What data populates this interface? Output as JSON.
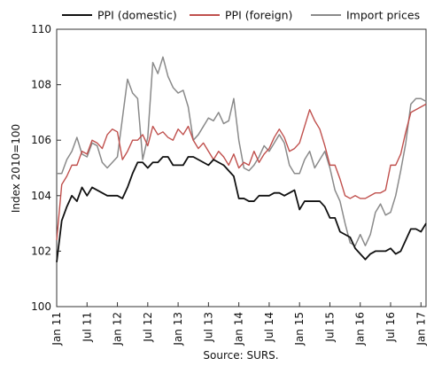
{
  "chart_data": {
    "type": "line",
    "ylabel": "Index 2010=100",
    "source": "Source: SURS.",
    "ylim": [
      100,
      110
    ],
    "y_ticks": [
      100,
      102,
      104,
      106,
      108,
      110
    ],
    "y_tick_labels": [
      "100",
      "102",
      "104",
      "106",
      "108",
      "110"
    ],
    "x_start": "Jan 2011",
    "x_ticks": [
      "Jan 11",
      "Jul 11",
      "Jan 12",
      "Jul 12",
      "Jan 13",
      "Jul 13",
      "Jan 14",
      "Jul 14",
      "Jan 15",
      "Jul 15",
      "Jan 16",
      "Jul 16",
      "Jan 17"
    ],
    "legend_position": "top",
    "grid": false,
    "series": [
      {
        "name": "PPI (domestic)",
        "color": "#111111",
        "values": [
          101.6,
          103.1,
          103.6,
          104.0,
          103.8,
          104.3,
          104.0,
          104.3,
          104.2,
          104.1,
          104.0,
          104.0,
          104.0,
          103.9,
          104.3,
          104.8,
          105.2,
          105.2,
          105.0,
          105.2,
          105.2,
          105.4,
          105.4,
          105.1,
          105.1,
          105.1,
          105.4,
          105.4,
          105.3,
          105.2,
          105.1,
          105.3,
          105.2,
          105.1,
          104.9,
          104.7,
          103.9,
          103.9,
          103.8,
          103.8,
          104.0,
          104.0,
          104.0,
          104.1,
          104.1,
          104.0,
          104.1,
          104.2,
          103.5,
          103.8,
          103.8,
          103.8,
          103.8,
          103.6,
          103.2,
          103.2,
          102.7,
          102.6,
          102.5,
          102.1,
          101.9,
          101.7,
          101.9,
          102.0,
          102.0,
          102.0,
          102.1,
          101.9,
          102.0,
          102.4,
          102.8,
          102.8,
          102.7,
          103.0
        ]
      },
      {
        "name": "PPI (foreign)",
        "color": "#c0504d",
        "values": [
          102.4,
          104.4,
          104.7,
          105.1,
          105.1,
          105.6,
          105.5,
          106.0,
          105.9,
          105.7,
          106.2,
          106.4,
          106.3,
          105.3,
          105.6,
          106.0,
          106.0,
          106.2,
          105.8,
          106.5,
          106.2,
          106.3,
          106.1,
          106.0,
          106.4,
          106.2,
          106.5,
          106.0,
          105.7,
          105.9,
          105.6,
          105.3,
          105.6,
          105.4,
          105.1,
          105.5,
          105.0,
          105.2,
          105.1,
          105.6,
          105.2,
          105.5,
          105.7,
          106.1,
          106.4,
          106.1,
          105.6,
          105.7,
          105.9,
          106.5,
          107.1,
          106.7,
          106.4,
          105.8,
          105.1,
          105.1,
          104.6,
          104.0,
          103.9,
          104.0,
          103.9,
          103.9,
          104.0,
          104.1,
          104.1,
          104.2,
          105.1,
          105.1,
          105.5,
          106.3,
          107.0,
          107.1,
          107.2,
          107.3
        ]
      },
      {
        "name": "Import prices",
        "color": "#8a8a8a",
        "values": [
          104.8,
          104.8,
          105.3,
          105.6,
          106.1,
          105.5,
          105.4,
          105.9,
          105.8,
          105.2,
          105.0,
          105.2,
          105.4,
          106.8,
          108.2,
          107.7,
          107.5,
          105.3,
          106.1,
          108.8,
          108.4,
          109.0,
          108.3,
          107.9,
          107.7,
          107.8,
          107.2,
          106.0,
          106.2,
          106.5,
          106.8,
          106.7,
          107.0,
          106.6,
          106.7,
          107.5,
          106.0,
          105.0,
          104.9,
          105.1,
          105.4,
          105.8,
          105.6,
          105.9,
          106.2,
          105.9,
          105.1,
          104.8,
          104.8,
          105.3,
          105.6,
          105.0,
          105.3,
          105.6,
          105.0,
          104.2,
          103.8,
          103.0,
          102.3,
          102.2,
          102.6,
          102.2,
          102.6,
          103.4,
          103.7,
          103.3,
          103.4,
          104.0,
          104.9,
          105.9,
          107.3,
          107.5,
          107.5,
          107.4
        ]
      }
    ]
  }
}
